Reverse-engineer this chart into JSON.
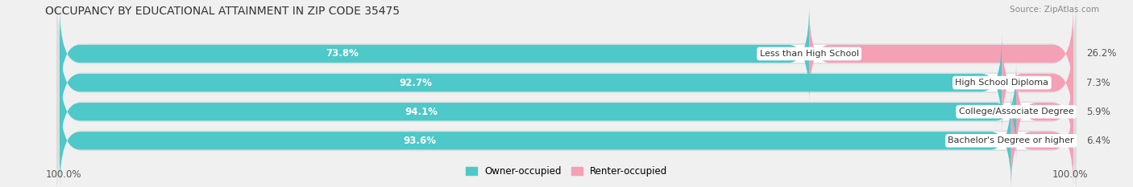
{
  "title": "OCCUPANCY BY EDUCATIONAL ATTAINMENT IN ZIP CODE 35475",
  "source": "Source: ZipAtlas.com",
  "categories": [
    "Less than High School",
    "High School Diploma",
    "College/Associate Degree",
    "Bachelor's Degree or higher"
  ],
  "owner_values": [
    73.8,
    92.7,
    94.1,
    93.6
  ],
  "renter_values": [
    26.2,
    7.3,
    5.9,
    6.4
  ],
  "owner_color": "#4EC8C8",
  "renter_color": "#F4A0B5",
  "bg_color": "#f0f0f0",
  "bar_bg_color": "#ffffff",
  "row_bg_color": "#e8e8e8",
  "title_fontsize": 10,
  "label_fontsize": 8.5,
  "cat_fontsize": 8,
  "bar_height": 0.62,
  "legend_owner": "Owner-occupied",
  "legend_renter": "Renter-occupied",
  "bottom_label": "100.0%",
  "xlim": [
    0,
    100
  ]
}
